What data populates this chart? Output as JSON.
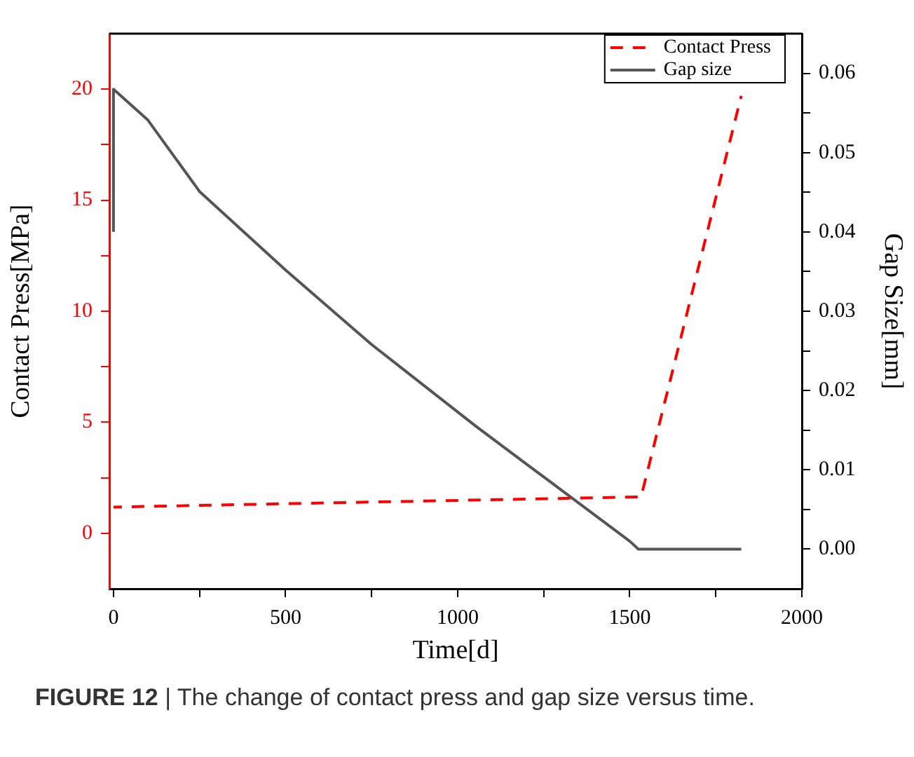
{
  "chart_data": {
    "type": "line",
    "xlabel": "Time[d]",
    "ylabel": "Contact Press[MPa]",
    "y2label": "Gap Size[mm]",
    "annotations": [
      "FIGURE 12 | The change of contact press and gap size versus time."
    ],
    "xlim": [
      -12,
      2000
    ],
    "xticks": [
      0,
      {
        "value": 250,
        "label": null
      },
      500,
      {
        "value": 750,
        "label": null
      },
      1000,
      {
        "value": 1250,
        "label": null
      },
      1500,
      {
        "value": 1750,
        "label": null
      },
      2000
    ],
    "ylim": [
      -2.5,
      22.5
    ],
    "yticks": [
      0,
      {
        "value": 2.5,
        "label": null
      },
      5,
      {
        "value": 7.5,
        "label": null
      },
      10,
      {
        "value": 12.5,
        "label": null
      },
      15,
      {
        "value": 17.5,
        "label": null
      },
      20
    ],
    "y2lim": [
      -0.005,
      0.065
    ],
    "y2ticks": [
      {
        "value": 0,
        "label": "0.00"
      },
      {
        "value": 0.005,
        "label": null
      },
      {
        "value": 0.01,
        "label": "0.01"
      },
      {
        "value": 0.015,
        "label": null
      },
      {
        "value": 0.02,
        "label": "0.02"
      },
      {
        "value": 0.025,
        "label": null
      },
      {
        "value": 0.03,
        "label": "0.03"
      },
      {
        "value": 0.035,
        "label": null
      },
      {
        "value": 0.04,
        "label": "0.04"
      },
      {
        "value": 0.045,
        "label": null
      },
      {
        "value": 0.05,
        "label": "0.05"
      },
      {
        "value": 0.055,
        "label": null
      },
      {
        "value": 0.06,
        "label": "0.06"
      }
    ],
    "grid": false,
    "legend": "top right",
    "marker": "none",
    "series": [
      {
        "name": "Contact Press",
        "color": "#ff0000",
        "line_style": "dashed",
        "x": [
          0,
          1533,
          1824
        ],
        "values": [
          1.18,
          1.64,
          19.7
        ]
      },
      {
        "name": "Gap size",
        "color": "#555555",
        "line_style": "solid",
        "axis": "y2",
        "x": [
          0,
          0,
          100,
          250,
          500,
          750,
          1053,
          1250,
          1500,
          1525,
          1824
        ],
        "values": [
          0.04,
          0.058,
          0.0541,
          0.0451,
          0.0352,
          0.0258,
          0.0155,
          0.0091,
          0.001,
          0,
          0
        ]
      }
    ]
  }
}
